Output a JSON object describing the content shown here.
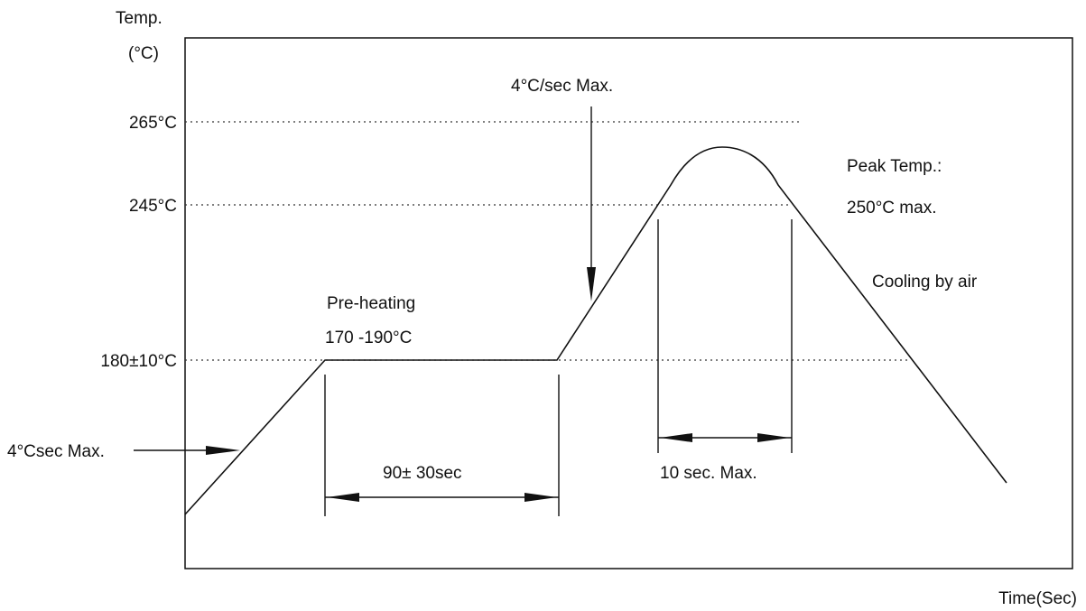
{
  "title": "",
  "y_axis": {
    "label_line1": "Temp.",
    "label_line2": "(°C)"
  },
  "x_axis": {
    "label": "Time(Sec)"
  },
  "y_levels": [
    {
      "label": "265°C"
    },
    {
      "label": "245°C"
    },
    {
      "label": "180±10°C"
    }
  ],
  "annotations": {
    "ramp_rate_top": "4°C/sec Max.",
    "peak_line1": "Peak Temp.:",
    "peak_line2": "250°C max.",
    "cooling": "Cooling by air",
    "preheat_line1": "Pre-heating",
    "preheat_line2": "170 -190°C",
    "ramp_rate_left": "4°Csec Max.",
    "preheat_duration": "90± 30sec",
    "peak_duration": "10 sec. Max."
  },
  "colors": {
    "line": "#111111",
    "grid_dotted": "#333333",
    "background": "#ffffff"
  }
}
